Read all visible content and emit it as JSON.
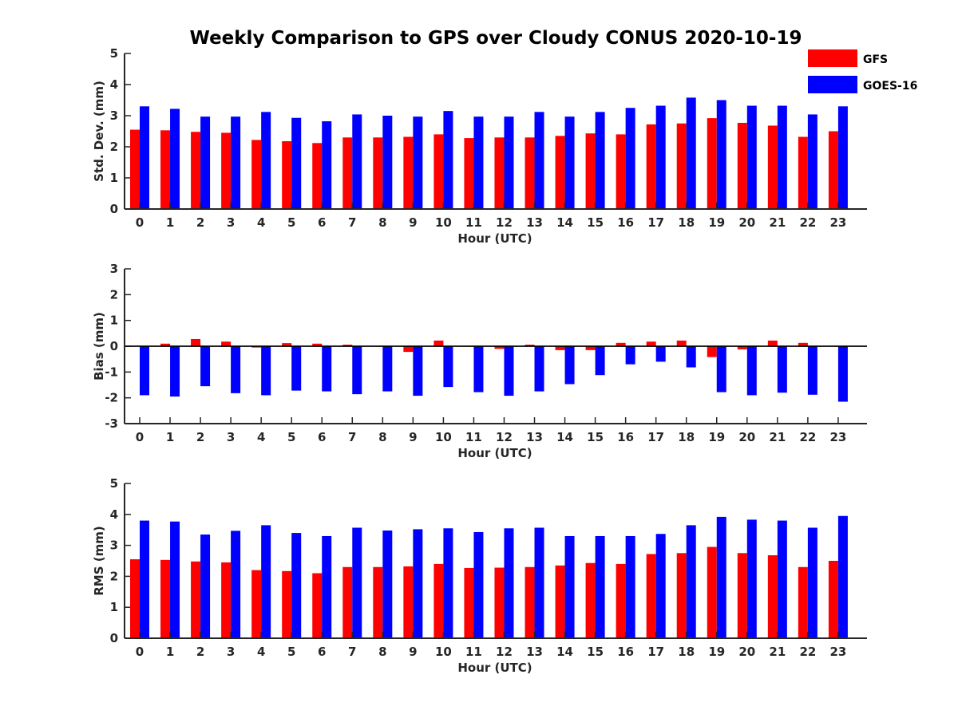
{
  "chart_data": {
    "title": "Weekly Comparison to GPS over Cloudy CONUS 2020-10-19",
    "legend": {
      "placement": "top-right",
      "entries": [
        {
          "name": "GFS",
          "color": "#ff0000"
        },
        {
          "name": "GOES-16",
          "color": "#0000ff"
        }
      ]
    },
    "panels": [
      {
        "type": "bar",
        "xlabel": "Hour (UTC)",
        "ylabel": "Std. Dev. (mm)",
        "ylim": [
          0,
          5
        ],
        "yticks": [
          "0",
          "1",
          "2",
          "3",
          "4",
          "5"
        ],
        "categories": [
          "0",
          "1",
          "2",
          "3",
          "4",
          "5",
          "6",
          "7",
          "8",
          "9",
          "10",
          "11",
          "12",
          "13",
          "14",
          "15",
          "16",
          "17",
          "18",
          "19",
          "20",
          "21",
          "22",
          "23"
        ],
        "series": [
          {
            "name": "GFS",
            "color": "#ff0000",
            "values": [
              2.55,
              2.53,
              2.48,
              2.45,
              2.22,
              2.18,
              2.12,
              2.3,
              2.3,
              2.32,
              2.4,
              2.28,
              2.3,
              2.3,
              2.35,
              2.43,
              2.4,
              2.72,
              2.75,
              2.92,
              2.77,
              2.68,
              2.32,
              2.5
            ]
          },
          {
            "name": "GOES-16",
            "color": "#0000ff",
            "values": [
              3.3,
              3.22,
              2.97,
              2.97,
              3.12,
              2.93,
              2.82,
              3.04,
              3.0,
              2.97,
              3.15,
              2.97,
              2.97,
              3.12,
              2.97,
              3.12,
              3.25,
              3.32,
              3.58,
              3.5,
              3.32,
              3.32,
              3.04,
              3.3
            ]
          }
        ]
      },
      {
        "type": "bar",
        "xlabel": "Hour (UTC)",
        "ylabel": "Bias (mm)",
        "ylim": [
          -3,
          3
        ],
        "yticks": [
          "-3",
          "-2",
          "-1",
          "0",
          "1",
          "2",
          "3"
        ],
        "categories": [
          "0",
          "1",
          "2",
          "3",
          "4",
          "5",
          "6",
          "7",
          "8",
          "9",
          "10",
          "11",
          "12",
          "13",
          "14",
          "15",
          "16",
          "17",
          "18",
          "19",
          "20",
          "21",
          "22",
          "23"
        ],
        "series": [
          {
            "name": "GFS",
            "color": "#ff0000",
            "values": [
              0.02,
              0.1,
              0.28,
              0.18,
              -0.05,
              0.12,
              0.1,
              0.06,
              0.02,
              -0.22,
              0.22,
              0.02,
              -0.1,
              0.06,
              -0.15,
              -0.15,
              0.13,
              0.18,
              0.22,
              -0.42,
              -0.12,
              0.22,
              0.13,
              0.02
            ]
          },
          {
            "name": "GOES-16",
            "color": "#0000ff",
            "values": [
              -1.9,
              -1.95,
              -1.55,
              -1.82,
              -1.9,
              -1.72,
              -1.75,
              -1.86,
              -1.75,
              -1.92,
              -1.58,
              -1.78,
              -1.92,
              -1.75,
              -1.47,
              -1.12,
              -0.7,
              -0.6,
              -0.82,
              -1.78,
              -1.9,
              -1.8,
              -1.88,
              -2.15
            ]
          }
        ]
      },
      {
        "type": "bar",
        "xlabel": "Hour (UTC)",
        "ylabel": "RMS (mm)",
        "ylim": [
          0,
          5
        ],
        "yticks": [
          "0",
          "1",
          "2",
          "3",
          "4",
          "5"
        ],
        "categories": [
          "0",
          "1",
          "2",
          "3",
          "4",
          "5",
          "6",
          "7",
          "8",
          "9",
          "10",
          "11",
          "12",
          "13",
          "14",
          "15",
          "16",
          "17",
          "18",
          "19",
          "20",
          "21",
          "22",
          "23"
        ],
        "series": [
          {
            "name": "GFS",
            "color": "#ff0000",
            "values": [
              2.55,
              2.53,
              2.48,
              2.45,
              2.2,
              2.17,
              2.1,
              2.3,
              2.3,
              2.32,
              2.4,
              2.27,
              2.28,
              2.3,
              2.35,
              2.43,
              2.4,
              2.72,
              2.75,
              2.95,
              2.75,
              2.68,
              2.3,
              2.5
            ]
          },
          {
            "name": "GOES-16",
            "color": "#0000ff",
            "values": [
              3.8,
              3.77,
              3.35,
              3.47,
              3.65,
              3.4,
              3.3,
              3.57,
              3.48,
              3.52,
              3.55,
              3.43,
              3.55,
              3.57,
              3.3,
              3.3,
              3.3,
              3.37,
              3.65,
              3.92,
              3.83,
              3.8,
              3.57,
              3.95
            ]
          }
        ]
      }
    ]
  }
}
